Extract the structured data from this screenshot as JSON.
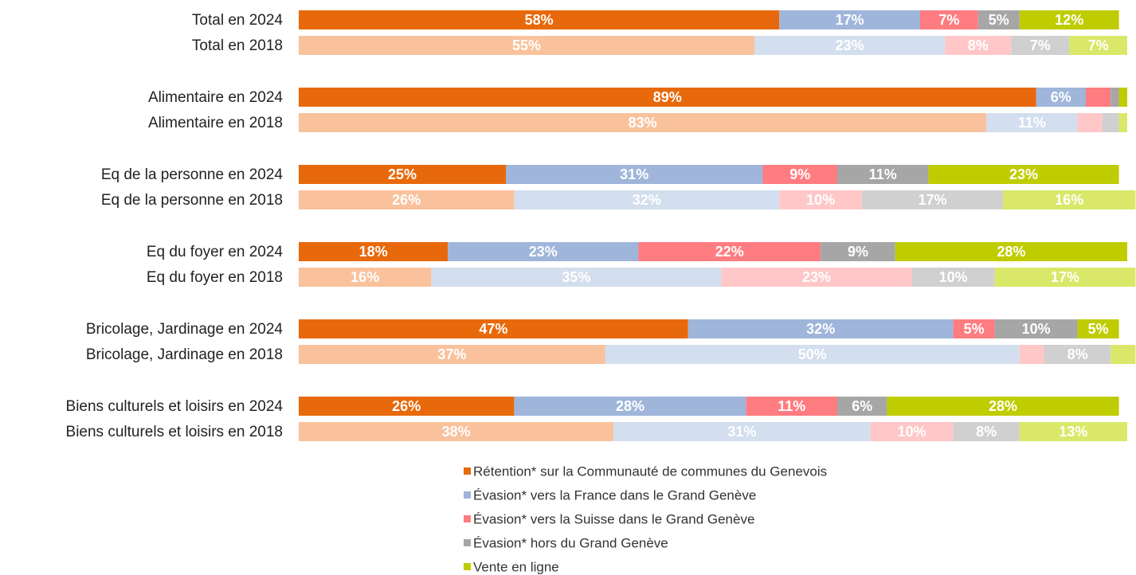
{
  "chart_data": {
    "type": "stacked-bar-horizontal",
    "categories": [
      "Total en 2024",
      "Total en 2018",
      "Alimentaire en 2024",
      "Alimentaire en 2018",
      "Eq de la personne en 2024",
      "Eq de la personne en 2018",
      "Eq du foyer en 2024",
      "Eq du foyer en 2018",
      "Bricolage, Jardinage en 2024",
      "Bricolage, Jardinage en 2018",
      "Biens culturels et loisirs en 2024",
      "Biens culturels et loisirs en 2018"
    ],
    "xlim": [
      0,
      100
    ],
    "series": [
      {
        "name": "Rétention* sur la Communauté de communes du Genevois",
        "color": "#e8690b",
        "light_color": "#f9c29c",
        "values": [
          58,
          55,
          89,
          83,
          25,
          26,
          18,
          16,
          47,
          37,
          26,
          38
        ],
        "value_labels": [
          "58%",
          "55%",
          "89%",
          "83%",
          "25%",
          "26%",
          "18%",
          "16%",
          "47%",
          "37%",
          "26%",
          "38%"
        ]
      },
      {
        "name": "Évasion* vers la France dans le Grand Genève",
        "color": "#9fb5da",
        "light_color": "#d3deee",
        "values": [
          17,
          23,
          6,
          11,
          31,
          32,
          23,
          35,
          32,
          50,
          28,
          31
        ],
        "value_labels": [
          "17%",
          "23%",
          "6%",
          "11%",
          "31%",
          "32%",
          "23%",
          "35%",
          "32%",
          "50%",
          "28%",
          "31%"
        ]
      },
      {
        "name": "Évasion* vers la Suisse dans le Grand Genève",
        "color": "#ff7c80",
        "light_color": "#ffc7c8",
        "values": [
          7,
          8,
          3,
          3,
          9,
          10,
          22,
          23,
          5,
          3,
          11,
          10
        ],
        "value_labels": [
          "7%",
          "8%",
          null,
          null,
          "9%",
          "10%",
          "22%",
          "23%",
          "5%",
          null,
          "11%",
          "10%"
        ]
      },
      {
        "name": "Évasion* hors du Grand Genève",
        "color": "#a6a6a6",
        "light_color": "#d0d0d0",
        "values": [
          5,
          7,
          1,
          2,
          11,
          17,
          9,
          10,
          10,
          8,
          6,
          8
        ],
        "value_labels": [
          "5%",
          "7%",
          null,
          null,
          "11%",
          "17%",
          "9%",
          "10%",
          "10%",
          "8%",
          "6%",
          "8%"
        ]
      },
      {
        "name": "Vente en ligne",
        "color": "#bfcc00",
        "light_color": "#d9e868",
        "values": [
          12,
          7,
          1,
          1,
          23,
          16,
          28,
          17,
          5,
          3,
          28,
          13
        ],
        "value_labels": [
          "12%",
          "7%",
          null,
          null,
          "23%",
          "16%",
          "28%",
          "17%",
          "5%",
          null,
          "28%",
          "13%"
        ]
      }
    ]
  }
}
